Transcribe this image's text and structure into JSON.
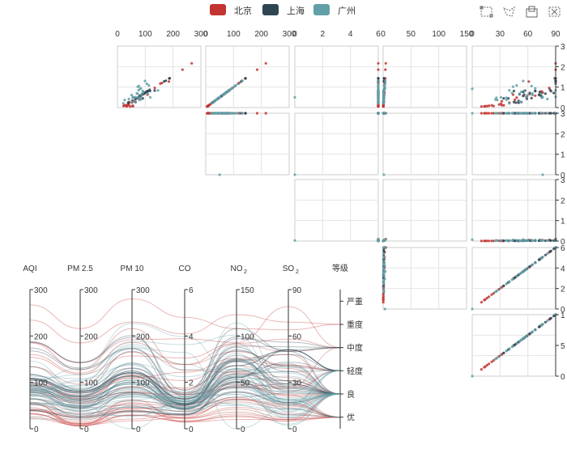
{
  "legend": {
    "items": [
      {
        "label": "北京",
        "color": "#c23531"
      },
      {
        "label": "上海",
        "color": "#2f4554"
      },
      {
        "label": "广州",
        "color": "#61a0a8"
      }
    ]
  },
  "toolbox": {
    "items": [
      {
        "name": "brush-rect-icon",
        "title": "rect select"
      },
      {
        "name": "brush-polygon-icon",
        "title": "polygon select"
      },
      {
        "name": "brush-keep-icon",
        "title": "keep selection"
      },
      {
        "name": "brush-clear-icon",
        "title": "clear selection"
      }
    ]
  },
  "chart_data": [
    {
      "type": "scatter",
      "subtype": "scatter-matrix",
      "dimensions": [
        "AQI",
        "PM 2.5",
        "PM 10",
        "CO",
        "NO2"
      ],
      "top_axis_ticks": [
        [
          "0",
          "100",
          "200",
          "300"
        ],
        [
          "0",
          "100",
          "200",
          "300"
        ],
        [
          "0",
          "2",
          "4",
          "6"
        ],
        [
          "0",
          "50",
          "100",
          "150"
        ],
        [
          "0",
          "30",
          "60",
          "90"
        ]
      ],
      "right_axis_ticks": [
        [
          "0",
          "1",
          "2",
          "3"
        ],
        [
          "0",
          "1",
          "2",
          "3"
        ],
        [
          "0",
          "1",
          "2",
          "3"
        ],
        [
          "0",
          "2",
          "4",
          "6"
        ],
        [
          "0",
          "5",
          "1"
        ]
      ],
      "ranges": {
        "AQI": [
          0,
          300
        ],
        "PM 2.5": [
          0,
          300
        ],
        "PM 10": [
          0,
          300
        ],
        "CO": [
          0,
          6
        ],
        "NO2": [
          0,
          150
        ],
        "SO2": [
          0,
          90
        ]
      },
      "grid": true
    },
    {
      "type": "parallel",
      "axes": [
        {
          "name": "AQI",
          "ticks": [
            "0",
            "100",
            "200",
            "300"
          ],
          "range": [
            0,
            300
          ]
        },
        {
          "name": "PM 2.5",
          "ticks": [
            "0",
            "100",
            "200",
            "300"
          ],
          "range": [
            0,
            300
          ]
        },
        {
          "name": "PM 10",
          "ticks": [
            "0",
            "100",
            "200",
            "300"
          ],
          "range": [
            0,
            300
          ]
        },
        {
          "name": "CO",
          "ticks": [
            "0",
            "2",
            "4",
            "6"
          ],
          "range": [
            0,
            6
          ]
        },
        {
          "name": "NO2",
          "ticks": [
            "0",
            "50",
            "100",
            "150"
          ],
          "range": [
            0,
            150
          ]
        },
        {
          "name": "SO2",
          "ticks": [
            "0",
            "30",
            "60",
            "90"
          ],
          "range": [
            0,
            90
          ]
        },
        {
          "name": "等级",
          "categories": [
            "优",
            "良",
            "轻度",
            "中度",
            "重度",
            "严重"
          ]
        }
      ],
      "series": [
        {
          "name": "北京",
          "color": "#c23531"
        },
        {
          "name": "上海",
          "color": "#2f4554"
        },
        {
          "name": "广州",
          "color": "#61a0a8"
        }
      ],
      "sample_rows": {
        "北京": [
          [
            55,
            9,
            56,
            0.46,
            18,
            6,
            "良"
          ],
          [
            25,
            11,
            21,
            0.65,
            34,
            9,
            "优"
          ],
          [
            56,
            7,
            63,
            0.3,
            14,
            5,
            "良"
          ],
          [
            33,
            7,
            29,
            0.33,
            16,
            6,
            "优"
          ],
          [
            42,
            24,
            44,
            0.76,
            40,
            16,
            "优"
          ],
          [
            82,
            58,
            90,
            1.77,
            68,
            33,
            "良"
          ],
          [
            74,
            49,
            77,
            1.46,
            48,
            27,
            "良"
          ],
          [
            78,
            55,
            80,
            1.29,
            59,
            29,
            "良"
          ],
          [
            267,
            216,
            280,
            4.8,
            108,
            64,
            "重度"
          ],
          [
            185,
            127,
            216,
            2.52,
            61,
            27,
            "中度"
          ],
          [
            39,
            19,
            38,
            0.57,
            31,
            15,
            "优"
          ],
          [
            41,
            11,
            40,
            0.43,
            21,
            7,
            "优"
          ],
          [
            64,
            38,
            74,
            1.04,
            46,
            22,
            "良"
          ],
          [
            108,
            79,
            120,
            1.7,
            75,
            41,
            "轻度"
          ],
          [
            108,
            63,
            116,
            1.48,
            44,
            26,
            "轻度"
          ],
          [
            33,
            6,
            29,
            0.34,
            13,
            5,
            "优"
          ],
          [
            94,
            66,
            110,
            1.54,
            62,
            31,
            "良"
          ],
          [
            186,
            142,
            192,
            3.88,
            93,
            79,
            "中度"
          ],
          [
            57,
            31,
            54,
            0.96,
            32,
            14,
            "良"
          ],
          [
            22,
            8,
            17,
            0.48,
            23,
            10,
            "优"
          ],
          [
            39,
            15,
            36,
            0.61,
            29,
            13,
            "优"
          ],
          [
            94,
            69,
            114,
            2.08,
            73,
            39,
            "良"
          ],
          [
            99,
            73,
            110,
            2.43,
            76,
            48,
            "良"
          ],
          [
            31,
            12,
            30,
            0.5,
            32,
            16,
            "优"
          ],
          [
            42,
            27,
            43,
            1,
            53,
            22,
            "优"
          ],
          [
            154,
            117,
            157,
            3.05,
            92,
            58,
            "中度"
          ],
          [
            234,
            185,
            230,
            4.09,
            123,
            69,
            "重度"
          ],
          [
            160,
            120,
            186,
            2.77,
            91,
            50,
            "中度"
          ],
          [
            134,
            96,
            165,
            2.76,
            83,
            41,
            "轻度"
          ],
          [
            52,
            24,
            60,
            1.03,
            50,
            21,
            "良"
          ],
          [
            46,
            5,
            49,
            0.28,
            10,
            6,
            "优"
          ]
        ],
        "上海": [
          [
            91,
            45,
            125,
            0.82,
            34,
            23,
            "良"
          ],
          [
            65,
            27,
            78,
            0.86,
            45,
            29,
            "良"
          ],
          [
            83,
            60,
            84,
            1.09,
            73,
            27,
            "良"
          ],
          [
            109,
            81,
            121,
            1.28,
            68,
            51,
            "轻度"
          ],
          [
            106,
            77,
            114,
            1.07,
            55,
            51,
            "轻度"
          ],
          [
            109,
            81,
            121,
            1.28,
            68,
            51,
            "轻度"
          ],
          [
            106,
            77,
            114,
            1.07,
            55,
            51,
            "轻度"
          ],
          [
            89,
            65,
            78,
            0.86,
            51,
            26,
            "良"
          ],
          [
            53,
            33,
            47,
            0.64,
            50,
            17,
            "良"
          ],
          [
            80,
            55,
            80,
            1.01,
            75,
            24,
            "良"
          ],
          [
            117,
            81,
            124,
            1.03,
            45,
            24,
            "轻度"
          ],
          [
            99,
            71,
            142,
            1.1,
            62,
            42,
            "良"
          ],
          [
            95,
            69,
            130,
            1.28,
            74,
            50,
            "良"
          ],
          [
            116,
            87,
            131,
            1.47,
            84,
            40,
            "轻度"
          ],
          [
            108,
            80,
            121,
            1.3,
            85,
            37,
            "轻度"
          ],
          [
            134,
            83,
            167,
            1.16,
            57,
            43,
            "轻度"
          ],
          [
            79,
            43,
            107,
            1.05,
            59,
            37,
            "良"
          ],
          [
            71,
            46,
            89,
            0.86,
            64,
            25,
            "良"
          ],
          [
            97,
            71,
            113,
            1.17,
            88,
            31,
            "良"
          ],
          [
            84,
            57,
            91,
            0.85,
            55,
            31,
            "良"
          ],
          [
            87,
            63,
            101,
            0.9,
            56,
            41,
            "良"
          ],
          [
            104,
            77,
            119,
            1.09,
            73,
            48,
            "轻度"
          ],
          [
            87,
            62,
            100,
            1,
            72,
            28,
            "良"
          ],
          [
            168,
            128,
            172,
            1.49,
            97,
            56,
            "中度"
          ],
          [
            65,
            45,
            51,
            0.74,
            39,
            17,
            "良"
          ],
          [
            39,
            24,
            38,
            0.61,
            47,
            17,
            "优"
          ],
          [
            39,
            24,
            39,
            0.59,
            50,
            19,
            "优"
          ],
          [
            93,
            68,
            96,
            1.05,
            79,
            29,
            "良"
          ],
          [
            188,
            143,
            197,
            1.66,
            99,
            51,
            "中度"
          ],
          [
            174,
            131,
            174,
            1.55,
            108,
            50,
            "中度"
          ],
          [
            187,
            143,
            201,
            1.39,
            89,
            53,
            "中度"
          ]
        ],
        "广州": [
          [
            26,
            37,
            27,
            1.163,
            27,
            13,
            "优"
          ],
          [
            85,
            62,
            71,
            1.195,
            60,
            8,
            "良"
          ],
          [
            78,
            38,
            74,
            1.363,
            37,
            7,
            "良"
          ],
          [
            21,
            21,
            36,
            0.634,
            40,
            9,
            "优"
          ],
          [
            41,
            42,
            46,
            0.915,
            81,
            13,
            "优"
          ],
          [
            56,
            52,
            69,
            1.067,
            92,
            16,
            "良"
          ],
          [
            64,
            30,
            28,
            0.924,
            51,
            2,
            "良"
          ],
          [
            55,
            48,
            74,
            1.236,
            75,
            26,
            "良"
          ],
          [
            76,
            85,
            113,
            1.237,
            114,
            27,
            "良"
          ],
          [
            91,
            81,
            104,
            1.041,
            56,
            40,
            "良"
          ],
          [
            84,
            39,
            60,
            0.964,
            25,
            11,
            "良"
          ],
          [
            64,
            51,
            101,
            0.862,
            58,
            23,
            "良"
          ],
          [
            70,
            69,
            120,
            1.198,
            65,
            36,
            "良"
          ],
          [
            77,
            105,
            178,
            2.549,
            64,
            16,
            "良"
          ],
          [
            109,
            68,
            87,
            0.996,
            74,
            29,
            "轻度"
          ],
          [
            73,
            68,
            97,
            0.905,
            51,
            34,
            "良"
          ],
          [
            54,
            27,
            47,
            0.592,
            53,
            12,
            "良"
          ],
          [
            51,
            61,
            97,
            0.811,
            65,
            19,
            "良"
          ],
          [
            91,
            71,
            121,
            1.374,
            43,
            18,
            "良"
          ],
          [
            73,
            102,
            182,
            2.787,
            44,
            19,
            "良"
          ],
          [
            73,
            50,
            76,
            0.717,
            31,
            20,
            "良"
          ],
          [
            84,
            94,
            140,
            2.238,
            68,
            18,
            "良"
          ],
          [
            93,
            77,
            104,
            1.165,
            53,
            7,
            "良"
          ],
          [
            99,
            130,
            227,
            3.97,
            55,
            15,
            "良"
          ],
          [
            146,
            84,
            139,
            1.094,
            40,
            17,
            "轻度"
          ],
          [
            113,
            108,
            137,
            1.481,
            48,
            15,
            "轻度"
          ],
          [
            81,
            48,
            62,
            1.619,
            26,
            3,
            "良"
          ],
          [
            56,
            48,
            68,
            1.336,
            37,
            9,
            "良"
          ],
          [
            82,
            92,
            174,
            3.29,
            0,
            13,
            "良"
          ],
          [
            106,
            116,
            188,
            3.628,
            101,
            16,
            "轻度"
          ],
          [
            118,
            50,
            0,
            1.383,
            76,
            11,
            "轻度"
          ]
        ]
      }
    }
  ]
}
